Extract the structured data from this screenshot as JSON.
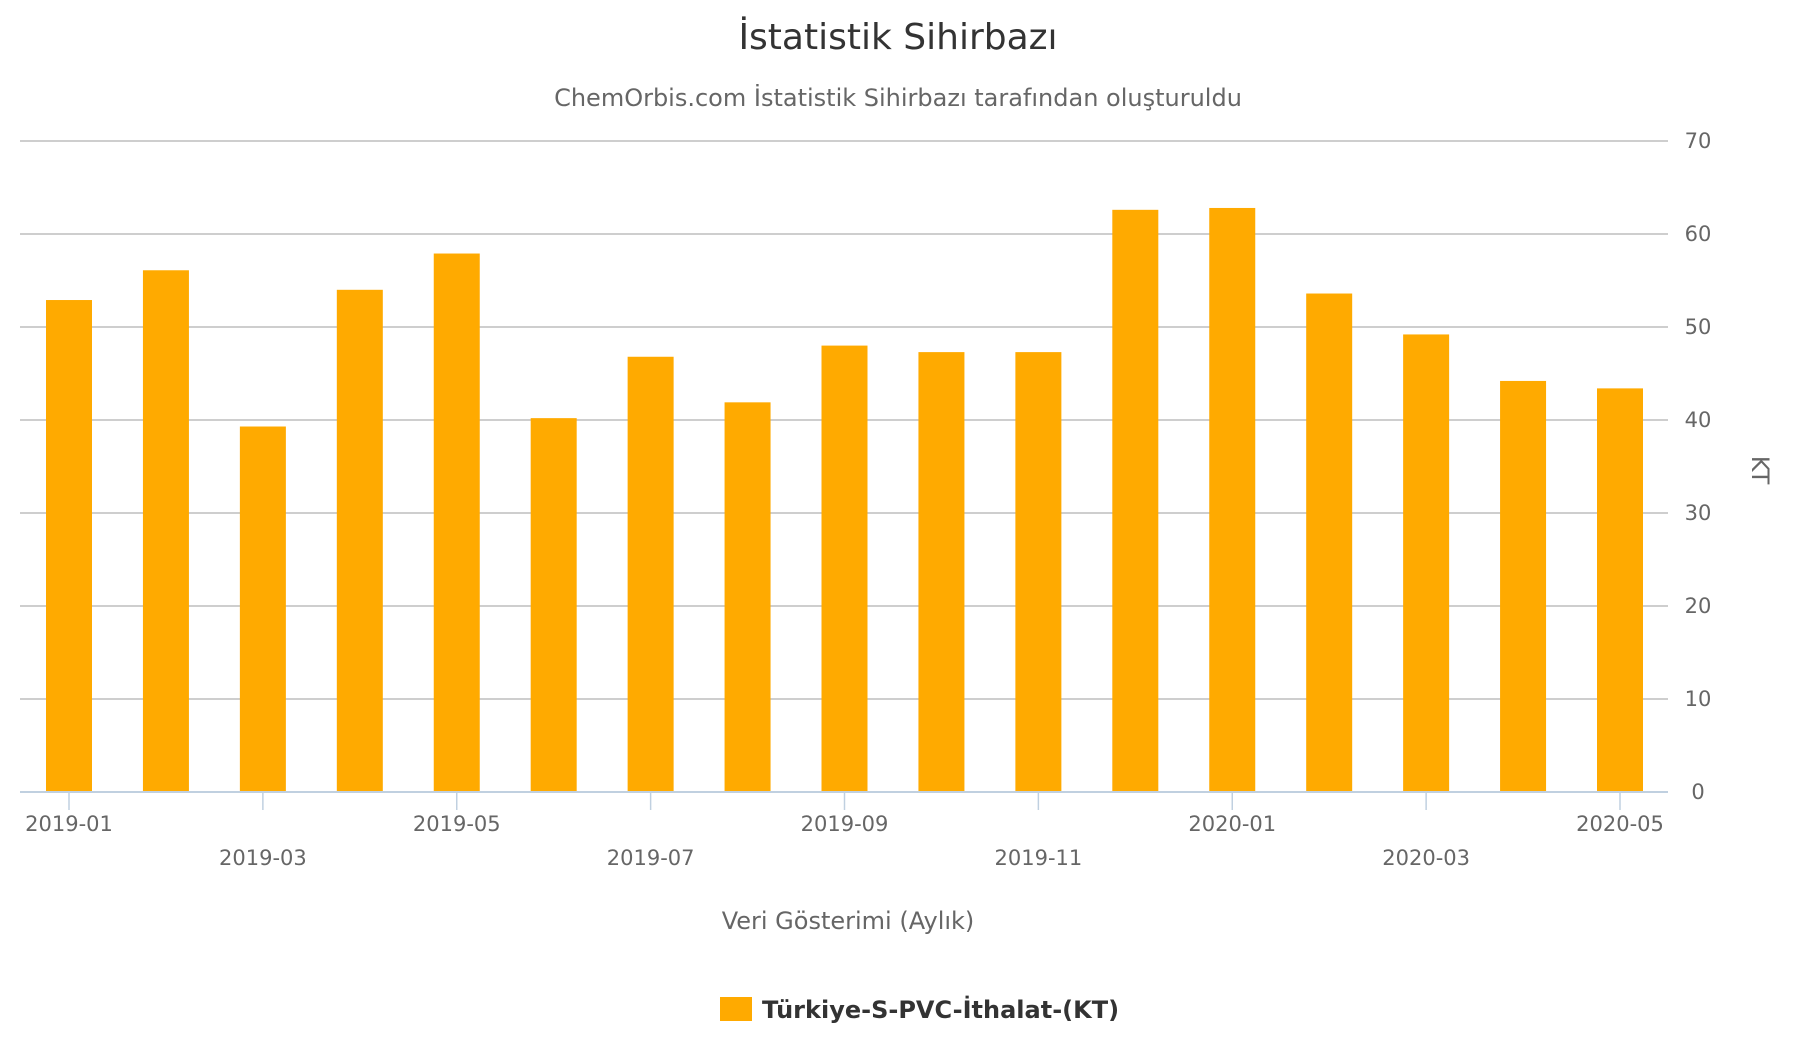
{
  "title": "İstatistik Sihirbazı",
  "subtitle": "ChemOrbis.com İstatistik Sihirbazı tarafından oluşturuldu",
  "colors": {
    "bar": "#FFAA00",
    "grid": "#BEBEBE",
    "axis": "#C0D0E0",
    "text": "#666666",
    "title": "#333333"
  },
  "chart_data": {
    "type": "bar",
    "title": "İstatistik Sihirbazı",
    "subtitle": "ChemOrbis.com İstatistik Sihirbazı tarafından oluşturuldu",
    "xlabel": "Veri Gösterimi (Aylık)",
    "ylabel": "KT",
    "ylim": [
      0,
      70
    ],
    "yticks": [
      0,
      10,
      20,
      30,
      40,
      50,
      60,
      70
    ],
    "grid": true,
    "legend_position": "bottom-center",
    "categories": [
      "2019-01",
      "2019-02",
      "2019-03",
      "2019-04",
      "2019-05",
      "2019-06",
      "2019-07",
      "2019-08",
      "2019-09",
      "2019-10",
      "2019-11",
      "2019-12",
      "2020-01",
      "2020-02",
      "2020-03",
      "2020-04",
      "2020-05"
    ],
    "tick_labels": [
      "2019-01",
      "2019-03",
      "2019-05",
      "2019-07",
      "2019-09",
      "2019-11",
      "2020-01",
      "2020-03",
      "2020-05"
    ],
    "series": [
      {
        "name": "Türkiye-S-PVC-İthalat-(KT)",
        "values": [
          52.9,
          56.1,
          39.3,
          54.0,
          57.9,
          40.2,
          46.8,
          41.9,
          48.0,
          47.3,
          47.3,
          62.6,
          62.8,
          53.6,
          49.2,
          44.2,
          43.4
        ]
      }
    ]
  }
}
